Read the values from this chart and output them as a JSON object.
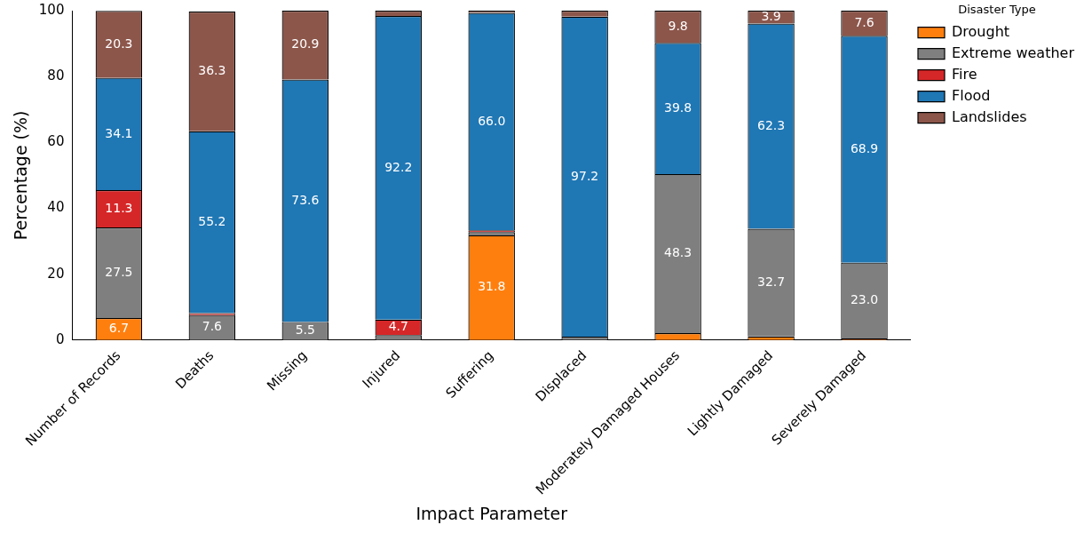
{
  "chart_data": {
    "type": "bar",
    "stacked": true,
    "xlabel": "Impact Parameter",
    "ylabel": "Percentage (%)",
    "legend_title": "Disaster Type",
    "legend": "top right",
    "grid": false,
    "categories": [
      "Number of Records",
      "Deaths",
      "Missing",
      "Injured",
      "Suffering",
      "Displaced",
      "Moderately Damaged Houses",
      "Lightly Damaged",
      "Severely Damaged"
    ],
    "ylim": [
      0,
      100
    ],
    "yticks": [
      0,
      20,
      40,
      60,
      80,
      100
    ],
    "series": [
      {
        "name": "Drought",
        "color": "#ff7f0e",
        "values": [
          6.7,
          null,
          0,
          0,
          31.8,
          0,
          2.1,
          1.1,
          0.5
        ],
        "value_labels": [
          "6.7",
          null,
          null,
          null,
          "31.8",
          null,
          null,
          null,
          null
        ]
      },
      {
        "name": "Extreme weather",
        "color": "#7f7f7f",
        "values": [
          27.5,
          7.6,
          5.5,
          1.5,
          1.0,
          1.0,
          48.3,
          32.7,
          23.0
        ],
        "value_labels": [
          "27.5",
          "7.6",
          "5.5",
          null,
          null,
          null,
          "48.3",
          "32.7",
          "23.0"
        ]
      },
      {
        "name": "Fire",
        "color": "#d62728",
        "values": [
          11.3,
          0.6,
          0,
          4.7,
          0.5,
          0,
          0,
          0,
          0
        ],
        "value_labels": [
          "11.3",
          null,
          null,
          "4.7",
          null,
          null,
          null,
          null,
          null
        ]
      },
      {
        "name": "Flood",
        "color": "#1f77b4",
        "values": [
          34.1,
          55.2,
          73.6,
          92.2,
          66.0,
          97.2,
          39.8,
          62.3,
          68.9
        ],
        "value_labels": [
          "34.1",
          "55.2",
          "73.6",
          "92.2",
          "66.0",
          "97.2",
          "39.8",
          "62.3",
          "68.9"
        ]
      },
      {
        "name": "Landslides",
        "color": "#8c564b",
        "values": [
          20.3,
          36.3,
          20.9,
          1.6,
          0.7,
          1.8,
          9.8,
          3.9,
          7.6
        ],
        "value_labels": [
          "20.3",
          "36.3",
          "20.9",
          null,
          null,
          null,
          "9.8",
          "3.9",
          "7.6"
        ]
      }
    ]
  }
}
